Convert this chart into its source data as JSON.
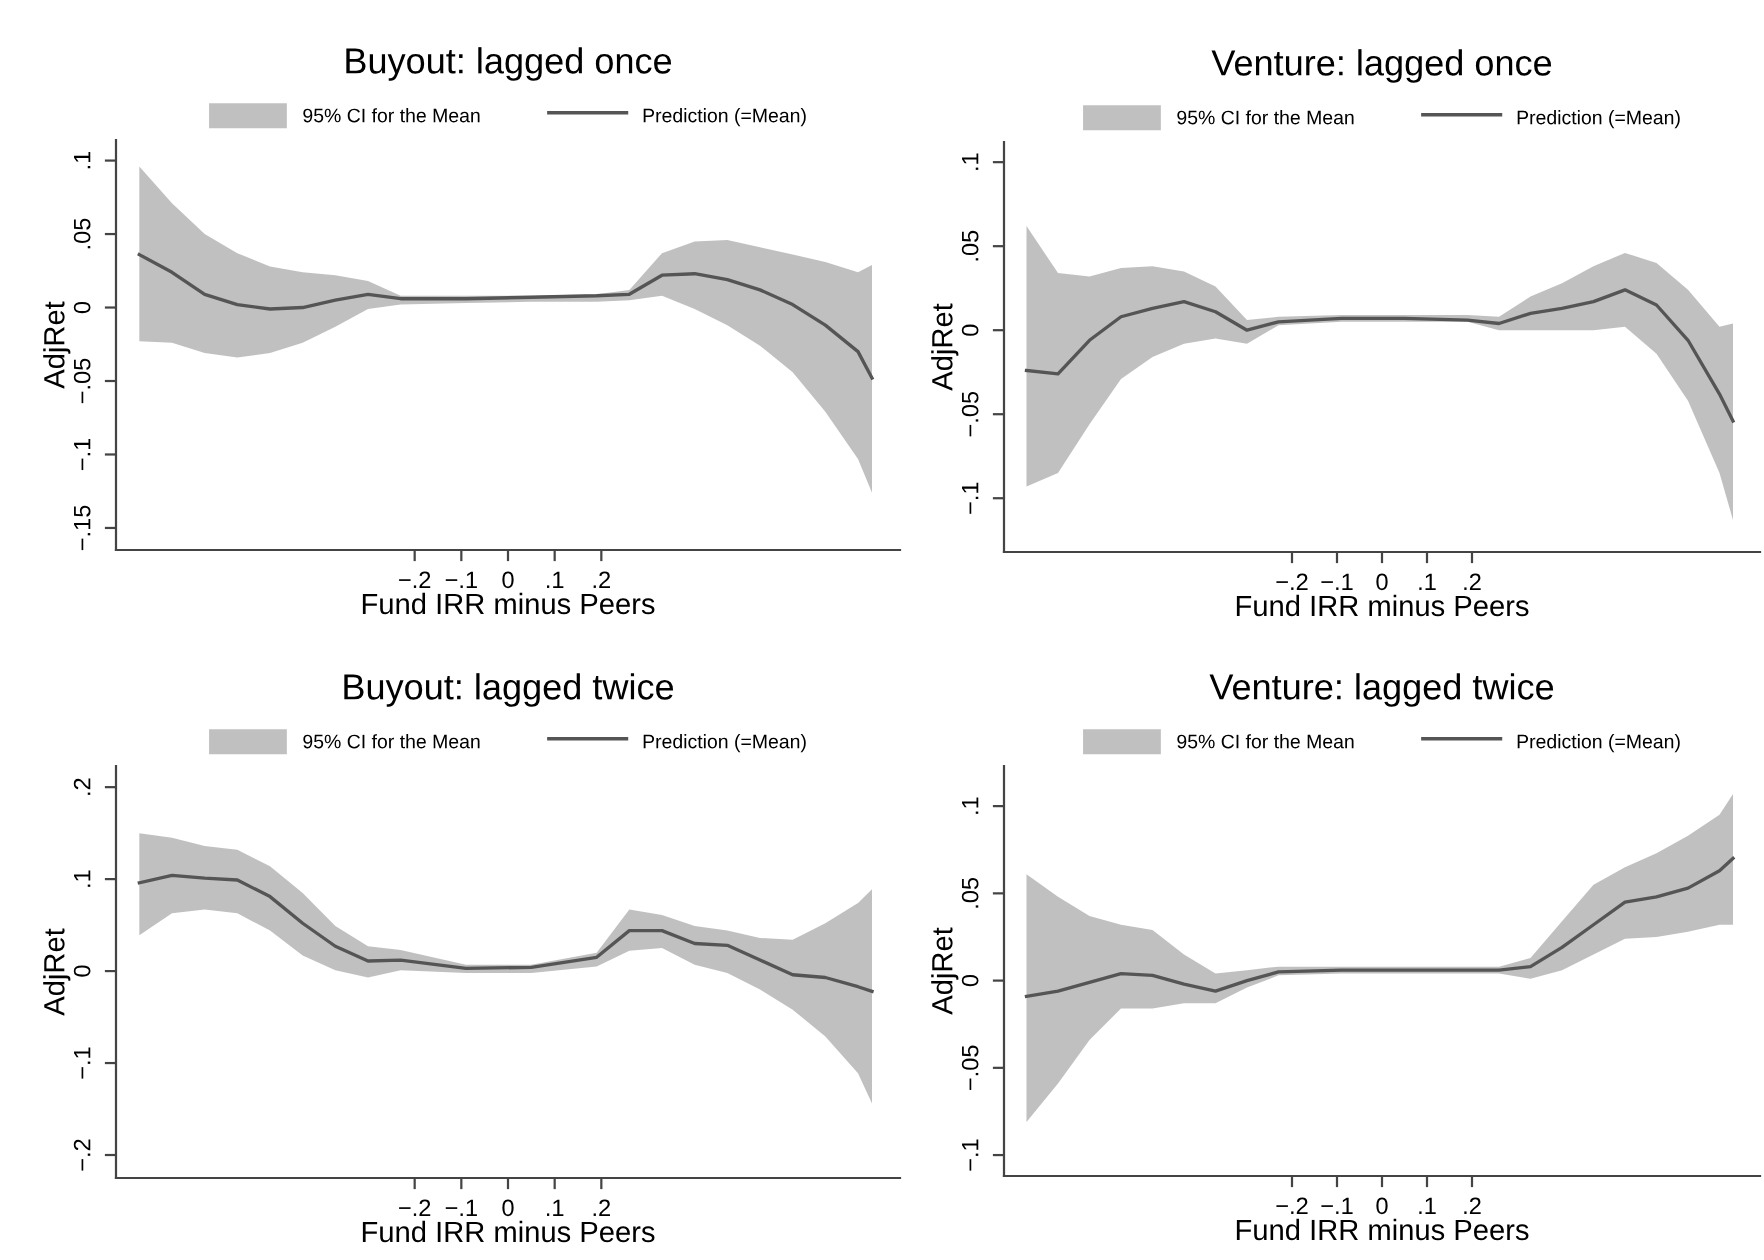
{
  "chart_data": [
    {
      "type": "line",
      "title": "Buyout: lagged once",
      "xlabel": "Fund IRR minus Peers",
      "ylabel": "AdjRet",
      "legend": "top",
      "annotations": [
        "95% CI for the Mean"
      ],
      "x": [
        -0.79,
        -0.72,
        -0.65,
        -0.58,
        -0.51,
        -0.44,
        -0.37,
        -0.3,
        -0.23,
        -0.09,
        0.05,
        0.19,
        0.26,
        0.33,
        0.4,
        0.47,
        0.54,
        0.61,
        0.68,
        0.75,
        0.78
      ],
      "xlim": [
        -0.84,
        0.84
      ],
      "xticks": [
        {
          "value": -0.2,
          "label": "−.2"
        },
        {
          "value": -0.1,
          "label": "−.1"
        },
        {
          "value": 0,
          "label": "0"
        },
        {
          "value": 0.1,
          "label": ".1"
        },
        {
          "value": 0.2,
          "label": ".2"
        }
      ],
      "ylim": [
        -0.165,
        0.114
      ],
      "yticks": [
        {
          "value": -0.15,
          "label": "−.15"
        },
        {
          "value": -0.1,
          "label": "−.1"
        },
        {
          "value": -0.05,
          "label": "−.05"
        },
        {
          "value": 0,
          "label": "0"
        },
        {
          "value": 0.05,
          "label": ".05"
        },
        {
          "value": 0.1,
          "label": ".1"
        }
      ],
      "series": [
        {
          "name": "Prediction (=Mean)",
          "color": "#555555",
          "values": [
            0.036,
            0.024,
            0.009,
            0.002,
            -0.001,
            0.0,
            0.005,
            0.009,
            0.006,
            0.006,
            0.007,
            0.008,
            0.009,
            0.022,
            0.023,
            0.019,
            0.012,
            0.002,
            -0.012,
            -0.03,
            -0.048
          ],
          "upper": [
            0.096,
            0.071,
            0.05,
            0.037,
            0.028,
            0.024,
            0.022,
            0.018,
            0.008,
            0.008,
            0.008,
            0.009,
            0.012,
            0.037,
            0.045,
            0.046,
            0.041,
            0.036,
            0.031,
            0.024,
            0.029
          ],
          "lower": [
            -0.023,
            -0.024,
            -0.031,
            -0.034,
            -0.031,
            -0.024,
            -0.013,
            -0.001,
            0.002,
            0.003,
            0.004,
            0.004,
            0.005,
            0.008,
            -0.001,
            -0.012,
            -0.026,
            -0.044,
            -0.071,
            -0.103,
            -0.126
          ]
        }
      ]
    },
    {
      "type": "line",
      "title": "Venture: lagged once",
      "xlabel": "Fund IRR minus Peers",
      "ylabel": "AdjRet",
      "legend": "top",
      "annotations": [
        "95% CI for the Mean"
      ],
      "x": [
        -0.79,
        -0.72,
        -0.65,
        -0.58,
        -0.51,
        -0.44,
        -0.37,
        -0.3,
        -0.23,
        -0.09,
        0.05,
        0.19,
        0.26,
        0.33,
        0.4,
        0.47,
        0.54,
        0.61,
        0.68,
        0.75,
        0.78
      ],
      "xlim": [
        -0.84,
        0.84
      ],
      "xticks": [
        {
          "value": -0.2,
          "label": "−.2"
        },
        {
          "value": -0.1,
          "label": "−.1"
        },
        {
          "value": 0,
          "label": "0"
        },
        {
          "value": 0.1,
          "label": ".1"
        },
        {
          "value": 0.2,
          "label": ".2"
        }
      ],
      "ylim": [
        -0.132,
        0.112
      ],
      "yticks": [
        {
          "value": -0.1,
          "label": "−.1"
        },
        {
          "value": -0.05,
          "label": "−.05"
        },
        {
          "value": 0,
          "label": "0"
        },
        {
          "value": 0.05,
          "label": ".05"
        },
        {
          "value": 0.1,
          "label": ".1"
        }
      ],
      "series": [
        {
          "name": "Prediction (=Mean)",
          "color": "#555555",
          "values": [
            -0.024,
            -0.026,
            -0.006,
            0.008,
            0.013,
            0.017,
            0.011,
            0.0,
            0.005,
            0.007,
            0.007,
            0.006,
            0.004,
            0.01,
            0.013,
            0.017,
            0.024,
            0.015,
            -0.006,
            -0.038,
            -0.054
          ],
          "upper": [
            0.062,
            0.034,
            0.032,
            0.037,
            0.038,
            0.035,
            0.026,
            0.006,
            0.008,
            0.009,
            0.009,
            0.009,
            0.008,
            0.02,
            0.028,
            0.038,
            0.046,
            0.04,
            0.024,
            0.002,
            0.004
          ],
          "lower": [
            -0.093,
            -0.085,
            -0.056,
            -0.029,
            -0.016,
            -0.008,
            -0.005,
            -0.008,
            0.003,
            0.005,
            0.005,
            0.005,
            0.0,
            0.0,
            0.0,
            0.0,
            0.002,
            -0.014,
            -0.042,
            -0.085,
            -0.113
          ]
        }
      ]
    },
    {
      "type": "line",
      "title": "Buyout: lagged twice",
      "xlabel": "Fund IRR minus Peers",
      "ylabel": "AdjRet",
      "legend": "top",
      "annotations": [
        "95% CI for the Mean"
      ],
      "x": [
        -0.79,
        -0.72,
        -0.65,
        -0.58,
        -0.51,
        -0.44,
        -0.37,
        -0.3,
        -0.23,
        -0.09,
        0.05,
        0.19,
        0.26,
        0.33,
        0.4,
        0.47,
        0.54,
        0.61,
        0.68,
        0.75,
        0.78
      ],
      "xlim": [
        -0.84,
        0.84
      ],
      "xticks": [
        {
          "value": -0.2,
          "label": "−.2"
        },
        {
          "value": -0.1,
          "label": "−.1"
        },
        {
          "value": 0,
          "label": "0"
        },
        {
          "value": 0.1,
          "label": ".1"
        },
        {
          "value": 0.2,
          "label": ".2"
        }
      ],
      "ylim": [
        -0.225,
        0.223
      ],
      "yticks": [
        {
          "value": -0.2,
          "label": "−.2"
        },
        {
          "value": -0.1,
          "label": "−.1"
        },
        {
          "value": 0,
          "label": "0"
        },
        {
          "value": 0.1,
          "label": ".1"
        },
        {
          "value": 0.2,
          "label": ".2"
        }
      ],
      "series": [
        {
          "name": "Prediction (=Mean)",
          "color": "#555555",
          "values": [
            0.096,
            0.104,
            0.101,
            0.099,
            0.081,
            0.052,
            0.027,
            0.011,
            0.012,
            0.003,
            0.004,
            0.015,
            0.044,
            0.044,
            0.03,
            0.028,
            0.012,
            -0.004,
            -0.007,
            -0.017,
            -0.022
          ],
          "upper": [
            0.15,
            0.145,
            0.136,
            0.132,
            0.114,
            0.085,
            0.049,
            0.027,
            0.023,
            0.007,
            0.007,
            0.02,
            0.067,
            0.061,
            0.049,
            0.044,
            0.036,
            0.034,
            0.052,
            0.074,
            0.089
          ],
          "lower": [
            0.039,
            0.063,
            0.067,
            0.063,
            0.044,
            0.017,
            0.001,
            -0.007,
            0.001,
            -0.002,
            -0.002,
            0.005,
            0.022,
            0.025,
            0.007,
            -0.002,
            -0.02,
            -0.042,
            -0.071,
            -0.111,
            -0.144
          ]
        }
      ]
    },
    {
      "type": "line",
      "title": "Venture: lagged twice",
      "xlabel": "Fund IRR minus Peers",
      "ylabel": "AdjRet",
      "legend": "top",
      "annotations": [
        "95% CI for the Mean"
      ],
      "x": [
        -0.79,
        -0.72,
        -0.65,
        -0.58,
        -0.51,
        -0.44,
        -0.37,
        -0.3,
        -0.23,
        -0.09,
        0.05,
        0.19,
        0.26,
        0.33,
        0.4,
        0.47,
        0.54,
        0.61,
        0.68,
        0.75,
        0.78
      ],
      "xlim": [
        -0.84,
        0.84
      ],
      "xticks": [
        {
          "value": -0.2,
          "label": "−.2"
        },
        {
          "value": -0.1,
          "label": "−.1"
        },
        {
          "value": 0,
          "label": "0"
        },
        {
          "value": 0.1,
          "label": ".1"
        },
        {
          "value": 0.2,
          "label": ".2"
        }
      ],
      "ylim": [
        -0.112,
        0.123
      ],
      "yticks": [
        {
          "value": -0.1,
          "label": "−.1"
        },
        {
          "value": -0.05,
          "label": "−.05"
        },
        {
          "value": 0,
          "label": "0"
        },
        {
          "value": 0.05,
          "label": ".05"
        },
        {
          "value": 0.1,
          "label": ".1"
        }
      ],
      "series": [
        {
          "name": "Prediction (=Mean)",
          "color": "#555555",
          "values": [
            -0.009,
            -0.006,
            -0.001,
            0.004,
            0.003,
            -0.002,
            -0.006,
            0.0,
            0.005,
            0.006,
            0.006,
            0.006,
            0.006,
            0.008,
            0.019,
            0.032,
            0.045,
            0.048,
            0.053,
            0.063,
            0.07
          ],
          "upper": [
            0.061,
            0.048,
            0.037,
            0.032,
            0.029,
            0.015,
            0.004,
            0.006,
            0.008,
            0.008,
            0.008,
            0.008,
            0.008,
            0.013,
            0.034,
            0.055,
            0.065,
            0.073,
            0.083,
            0.095,
            0.107
          ],
          "lower": [
            -0.081,
            -0.059,
            -0.034,
            -0.016,
            -0.016,
            -0.013,
            -0.013,
            -0.004,
            0.003,
            0.004,
            0.004,
            0.004,
            0.004,
            0.001,
            0.006,
            0.015,
            0.024,
            0.025,
            0.028,
            0.032,
            0.032
          ]
        }
      ]
    }
  ]
}
